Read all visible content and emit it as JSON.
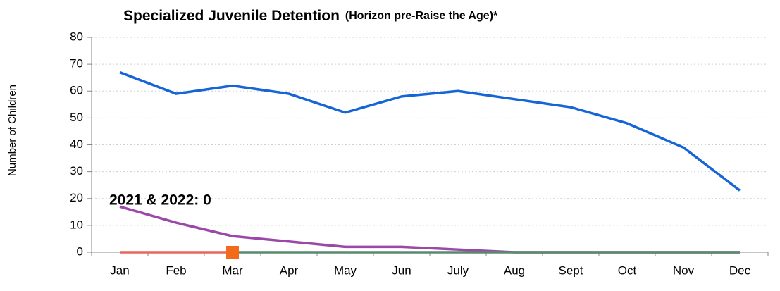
{
  "chart_data": {
    "type": "line",
    "title": "Specialized Juvenile Detention",
    "subtitle": "(Horizon pre-Raise the Age)*",
    "y_label": "Number of Children",
    "annotation": "2021 & 2022: 0",
    "categories": [
      "Jan",
      "Feb",
      "Mar",
      "Apr",
      "May",
      "Jun",
      "July",
      "Aug",
      "Sept",
      "Oct",
      "Nov",
      "Dec"
    ],
    "series": [
      {
        "color": "#1565d8",
        "values": [
          67,
          59,
          62,
          59,
          52,
          58,
          60,
          57,
          54,
          48,
          39,
          23
        ]
      },
      {
        "color": "#9b48a8",
        "values": [
          17,
          11,
          6,
          4,
          2,
          2,
          1,
          0,
          0,
          0,
          0,
          0
        ]
      },
      {
        "color": "#e8675c",
        "values": [
          0,
          0,
          0,
          null,
          null,
          null,
          null,
          null,
          null,
          null,
          null,
          null
        ]
      },
      {
        "color": "#5a8a6e",
        "values": [
          null,
          null,
          0,
          0,
          0,
          0,
          0,
          0,
          0,
          0,
          0,
          0
        ]
      },
      {
        "color": "#f26a1b",
        "marker": "square",
        "values": [
          null,
          null,
          0,
          null,
          null,
          null,
          null,
          null,
          null,
          null,
          null,
          null
        ]
      }
    ],
    "ylim": [
      0,
      80
    ],
    "yticks": [
      0,
      10,
      20,
      30,
      40,
      50,
      60,
      70,
      80
    ],
    "grid": true
  }
}
